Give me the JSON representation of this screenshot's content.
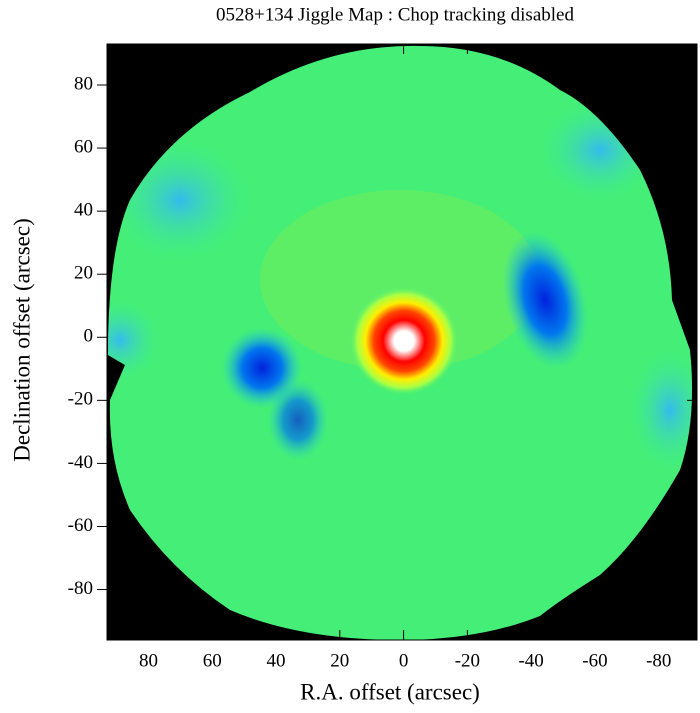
{
  "chart_data": {
    "type": "image",
    "title": "0528+134 Jiggle Map : Chop tracking disabled",
    "xlabel": "R.A. offset (arcsec)",
    "ylabel": "Declination offset (arcsec)",
    "xlim": [
      93,
      -92
    ],
    "ylim": [
      -96,
      93
    ],
    "xticks": [
      80,
      60,
      40,
      20,
      0,
      -20,
      -40,
      -60,
      -80
    ],
    "yticks": [
      80,
      60,
      40,
      20,
      0,
      -20,
      -40,
      -60,
      -80
    ]
  }
}
